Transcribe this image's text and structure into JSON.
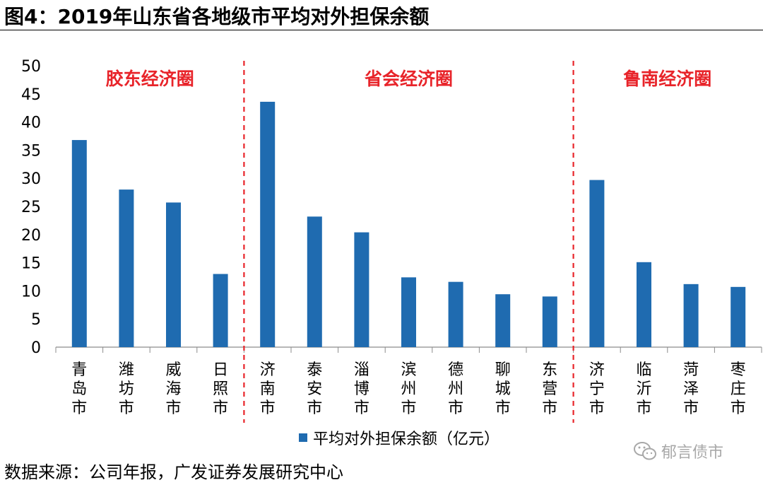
{
  "figure": {
    "title": "图4：2019年山东省各地级市平均对外担保余额",
    "source": "数据来源：公司年报，广发证券发展研究中心",
    "watermark": "郁言债市"
  },
  "chart_data": {
    "type": "bar",
    "title": "",
    "xlabel": "",
    "ylabel": "",
    "ylim": [
      0,
      50
    ],
    "yticks": [
      0,
      5,
      10,
      15,
      20,
      25,
      30,
      35,
      40,
      45,
      50
    ],
    "categories": [
      "青岛市",
      "潍坊市",
      "威海市",
      "日照市",
      "济南市",
      "泰安市",
      "淄博市",
      "滨州市",
      "德州市",
      "聊城市",
      "东营市",
      "济宁市",
      "临沂市",
      "菏泽市",
      "枣庄市"
    ],
    "series": [
      {
        "name": "平均对外担保余额（亿元）",
        "color": "#1f6bb0",
        "values": [
          36.8,
          28.0,
          25.7,
          13.0,
          43.6,
          23.2,
          20.4,
          12.4,
          11.6,
          9.4,
          9.0,
          29.7,
          15.1,
          11.2,
          10.7
        ]
      }
    ],
    "groups": [
      {
        "label": "胶东经济圈",
        "start": 0,
        "end": 3
      },
      {
        "label": "省会经济圈",
        "start": 4,
        "end": 10
      },
      {
        "label": "鲁南经济圈",
        "start": 11,
        "end": 14
      }
    ],
    "group_label_color": "#e8242a",
    "divider_color": "#e8242a",
    "legend_position": "bottom"
  }
}
